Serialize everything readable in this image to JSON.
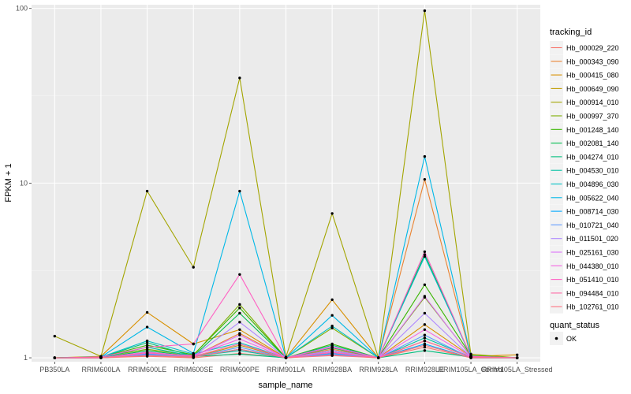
{
  "chart_data": {
    "type": "line",
    "title": "",
    "xlabel": "sample_name",
    "ylabel": "FPKM + 1",
    "y_scale": "log10",
    "ylim": [
      0.95,
      105
    ],
    "y_ticks": [
      1,
      10,
      100
    ],
    "y_tick_labels": [
      "1",
      "10",
      "100"
    ],
    "grid": true,
    "legend_position": "right",
    "categories": [
      "PB350LA",
      "RRIM600LA",
      "RRIM600LE",
      "RRIM600SE",
      "RRIM600PE",
      "RRIM901LA",
      "RRIM928BA",
      "RRIM928LA",
      "RRIM928LE",
      "RRIM105LA_Control",
      "RRIM105LA_Stressed"
    ],
    "legend_title": "tracking_id",
    "series": [
      {
        "name": "Hb_000029_220",
        "color": "#F8766D",
        "values": [
          1.0,
          1.0,
          1.02,
          1.0,
          1.06,
          1.0,
          1.04,
          1.0,
          1.15,
          1.0,
          1.0
        ]
      },
      {
        "name": "Hb_000343_090",
        "color": "#EA8331",
        "values": [
          1.0,
          1.01,
          1.06,
          1.02,
          1.38,
          1.0,
          1.12,
          1.0,
          10.5,
          1.01,
          1.0
        ]
      },
      {
        "name": "Hb_000415_080",
        "color": "#D89000",
        "values": [
          1.0,
          1.02,
          1.82,
          1.2,
          1.45,
          1.0,
          2.15,
          1.0,
          1.55,
          1.02,
          1.04
        ]
      },
      {
        "name": "Hb_000649_090",
        "color": "#C09B00",
        "values": [
          1.0,
          1.0,
          1.04,
          1.01,
          1.18,
          1.0,
          1.08,
          1.0,
          1.25,
          1.01,
          1.0
        ]
      },
      {
        "name": "Hb_000914_010",
        "color": "#A3A500",
        "values": [
          1.33,
          1.02,
          9.0,
          3.3,
          40.0,
          1.01,
          6.7,
          1.0,
          97.0,
          1.05,
          1.0
        ]
      },
      {
        "name": "Hb_000997_370",
        "color": "#7CAE00",
        "values": [
          1.0,
          1.01,
          1.12,
          1.03,
          2.02,
          1.0,
          1.48,
          1.0,
          2.22,
          1.02,
          1.0
        ]
      },
      {
        "name": "Hb_001248_140",
        "color": "#39B600",
        "values": [
          1.0,
          1.01,
          1.18,
          1.04,
          1.93,
          1.0,
          1.2,
          1.0,
          2.62,
          1.03,
          1.0
        ]
      },
      {
        "name": "Hb_002081_140",
        "color": "#00BB4E",
        "values": [
          1.0,
          1.0,
          1.1,
          1.02,
          1.8,
          1.0,
          1.14,
          1.0,
          3.9,
          1.02,
          1.0
        ]
      },
      {
        "name": "Hb_004274_010",
        "color": "#00BF7D",
        "values": [
          1.0,
          1.01,
          1.22,
          1.02,
          1.05,
          1.0,
          1.18,
          1.0,
          1.1,
          1.01,
          1.0
        ]
      },
      {
        "name": "Hb_004530_010",
        "color": "#00C1A3",
        "values": [
          1.0,
          1.0,
          1.15,
          1.02,
          1.1,
          1.0,
          1.1,
          1.0,
          1.3,
          1.01,
          1.0
        ]
      },
      {
        "name": "Hb_004896_030",
        "color": "#00BFC4",
        "values": [
          1.0,
          1.01,
          1.25,
          1.05,
          1.22,
          1.0,
          1.52,
          1.0,
          3.8,
          1.02,
          1.0
        ]
      },
      {
        "name": "Hb_005622_040",
        "color": "#00B8E7",
        "values": [
          1.0,
          1.01,
          1.5,
          1.06,
          9.0,
          1.0,
          1.75,
          1.0,
          14.2,
          1.02,
          1.0
        ]
      },
      {
        "name": "Hb_008714_030",
        "color": "#00A9FF",
        "values": [
          1.0,
          1.0,
          1.05,
          1.01,
          1.12,
          1.0,
          1.06,
          1.0,
          1.2,
          1.0,
          1.0
        ]
      },
      {
        "name": "Hb_010721_040",
        "color": "#619CFF",
        "values": [
          1.0,
          1.0,
          1.04,
          1.01,
          1.15,
          1.0,
          1.05,
          1.0,
          1.35,
          1.0,
          1.0
        ]
      },
      {
        "name": "Hb_011501_020",
        "color": "#AE87FF",
        "values": [
          1.0,
          1.0,
          1.06,
          1.02,
          1.6,
          1.0,
          1.1,
          1.0,
          1.8,
          1.01,
          1.0
        ]
      },
      {
        "name": "Hb_025161_030",
        "color": "#DB72FB",
        "values": [
          1.0,
          1.0,
          1.08,
          1.02,
          1.35,
          1.0,
          1.16,
          1.0,
          2.25,
          1.01,
          1.0
        ]
      },
      {
        "name": "Hb_044380_010",
        "color": "#F564E3",
        "values": [
          1.0,
          1.0,
          1.06,
          1.03,
          1.28,
          1.0,
          1.08,
          1.0,
          1.45,
          1.01,
          1.0
        ]
      },
      {
        "name": "Hb_051410_010",
        "color": "#FF61C3",
        "values": [
          1.0,
          1.01,
          1.15,
          1.2,
          3.0,
          1.0,
          1.15,
          1.0,
          4.05,
          1.02,
          1.0
        ]
      },
      {
        "name": "Hb_094484_010",
        "color": "#FF67A4",
        "values": [
          1.0,
          1.0,
          1.07,
          1.02,
          1.2,
          1.0,
          1.07,
          1.0,
          1.25,
          1.01,
          1.0
        ]
      },
      {
        "name": "Hb_102761_010",
        "color": "#FC717F",
        "values": [
          1.0,
          1.0,
          1.03,
          1.01,
          1.12,
          1.0,
          1.03,
          1.0,
          1.18,
          1.0,
          1.0
        ]
      }
    ],
    "shape_legend": {
      "title": "quant_status",
      "entries": [
        {
          "label": "OK",
          "color": "#000000"
        }
      ]
    }
  }
}
